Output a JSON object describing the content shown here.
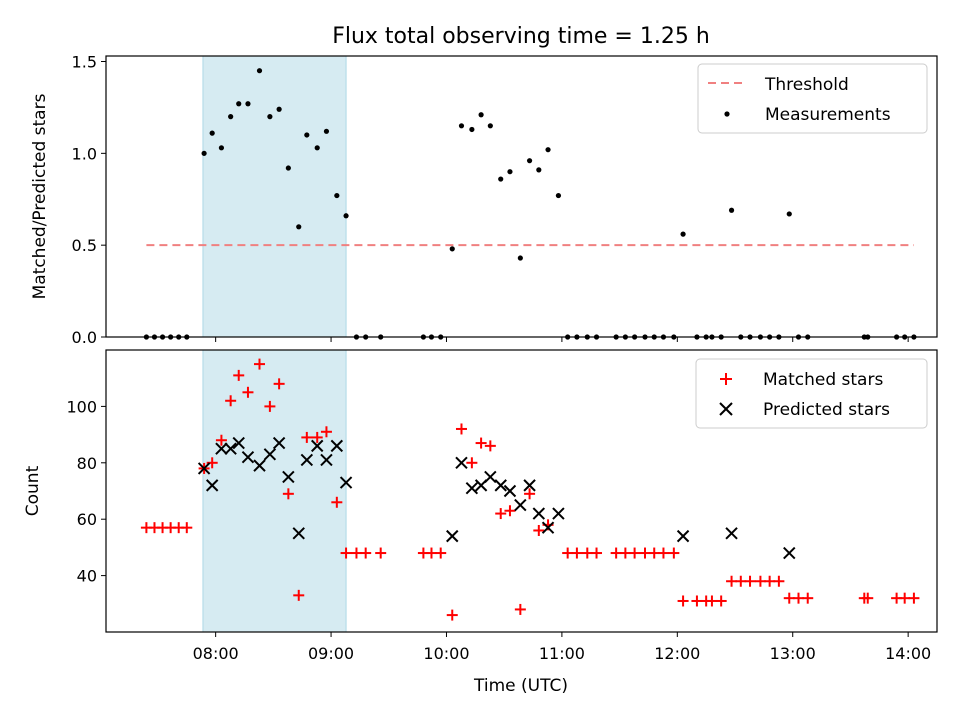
{
  "chart_data": [
    {
      "type": "scatter",
      "title": "Flux total observing time = 1.25 h",
      "ylabel": "Matched/Predicted stars",
      "xlabel": "",
      "xlim": [
        7.05,
        14.25
      ],
      "ylim": [
        0,
        1.53
      ],
      "yticks": [
        0,
        0.5,
        1.0,
        1.5
      ],
      "ytick_labels": [
        "0.0",
        "0.5",
        "1.0",
        "1.5"
      ],
      "highlight_span": [
        7.89,
        9.13
      ],
      "threshold": {
        "name": "Threshold",
        "value": 0.5,
        "x_from": 7.4,
        "x_to": 14.05,
        "color": "#f08080"
      },
      "series": [
        {
          "name": "Measurements",
          "marker": "dot",
          "color": "#000000",
          "points": [
            [
              7.4,
              0
            ],
            [
              7.47,
              0
            ],
            [
              7.54,
              0
            ],
            [
              7.61,
              0
            ],
            [
              7.68,
              0
            ],
            [
              7.75,
              0
            ],
            [
              7.9,
              1.0
            ],
            [
              7.97,
              1.11
            ],
            [
              8.05,
              1.03
            ],
            [
              8.13,
              1.2
            ],
            [
              8.2,
              1.27
            ],
            [
              8.28,
              1.27
            ],
            [
              8.38,
              1.45
            ],
            [
              8.47,
              1.2
            ],
            [
              8.55,
              1.24
            ],
            [
              8.63,
              0.92
            ],
            [
              8.72,
              0.6
            ],
            [
              8.79,
              1.1
            ],
            [
              8.88,
              1.03
            ],
            [
              8.96,
              1.12
            ],
            [
              9.05,
              0.77
            ],
            [
              9.13,
              0.66
            ],
            [
              9.22,
              0
            ],
            [
              9.3,
              0
            ],
            [
              9.43,
              0
            ],
            [
              9.8,
              0
            ],
            [
              9.87,
              0
            ],
            [
              9.95,
              0
            ],
            [
              10.05,
              0.48
            ],
            [
              10.13,
              1.15
            ],
            [
              10.22,
              1.13
            ],
            [
              10.3,
              1.21
            ],
            [
              10.38,
              1.15
            ],
            [
              10.47,
              0.86
            ],
            [
              10.55,
              0.9
            ],
            [
              10.64,
              0.43
            ],
            [
              10.72,
              0.96
            ],
            [
              10.8,
              0.91
            ],
            [
              10.88,
              1.02
            ],
            [
              10.97,
              0.77
            ],
            [
              11.05,
              0
            ],
            [
              11.13,
              0
            ],
            [
              11.22,
              0
            ],
            [
              11.3,
              0
            ],
            [
              11.47,
              0
            ],
            [
              11.55,
              0
            ],
            [
              11.63,
              0
            ],
            [
              11.72,
              0
            ],
            [
              11.8,
              0
            ],
            [
              11.88,
              0
            ],
            [
              11.97,
              0
            ],
            [
              12.05,
              0.56
            ],
            [
              12.17,
              0
            ],
            [
              12.25,
              0
            ],
            [
              12.3,
              0
            ],
            [
              12.38,
              0
            ],
            [
              12.47,
              0.69
            ],
            [
              12.55,
              0
            ],
            [
              12.63,
              0
            ],
            [
              12.72,
              0
            ],
            [
              12.8,
              0
            ],
            [
              12.88,
              0
            ],
            [
              12.97,
              0.67
            ],
            [
              13.05,
              0
            ],
            [
              13.13,
              0
            ],
            [
              13.62,
              0
            ],
            [
              13.65,
              0
            ],
            [
              13.9,
              0
            ],
            [
              13.97,
              0
            ],
            [
              14.05,
              0
            ]
          ]
        }
      ]
    },
    {
      "type": "scatter",
      "title": "",
      "ylabel": "Count",
      "xlabel": "Time (UTC)",
      "xlim": [
        7.05,
        14.25
      ],
      "ylim": [
        20,
        120
      ],
      "yticks": [
        40,
        60,
        80,
        100
      ],
      "ytick_labels": [
        "40",
        "60",
        "80",
        "100"
      ],
      "xticks": [
        8,
        9,
        10,
        11,
        12,
        13,
        14
      ],
      "xtick_labels": [
        "08:00",
        "09:00",
        "10:00",
        "11:00",
        "12:00",
        "13:00",
        "14:00"
      ],
      "highlight_span": [
        7.89,
        9.13
      ],
      "series": [
        {
          "name": "Matched stars",
          "marker": "plus",
          "color": "#ff0000",
          "points": [
            [
              7.4,
              57
            ],
            [
              7.47,
              57
            ],
            [
              7.54,
              57
            ],
            [
              7.61,
              57
            ],
            [
              7.68,
              57
            ],
            [
              7.75,
              57
            ],
            [
              7.9,
              78
            ],
            [
              7.97,
              80
            ],
            [
              8.05,
              88
            ],
            [
              8.13,
              102
            ],
            [
              8.2,
              111
            ],
            [
              8.28,
              105
            ],
            [
              8.38,
              115
            ],
            [
              8.47,
              100
            ],
            [
              8.55,
              108
            ],
            [
              8.63,
              69
            ],
            [
              8.72,
              33
            ],
            [
              8.79,
              89
            ],
            [
              8.88,
              89
            ],
            [
              8.96,
              91
            ],
            [
              9.05,
              66
            ],
            [
              9.13,
              48
            ],
            [
              9.22,
              48
            ],
            [
              9.3,
              48
            ],
            [
              9.43,
              48
            ],
            [
              9.8,
              48
            ],
            [
              9.87,
              48
            ],
            [
              9.95,
              48
            ],
            [
              10.05,
              26
            ],
            [
              10.13,
              92
            ],
            [
              10.22,
              80
            ],
            [
              10.3,
              87
            ],
            [
              10.38,
              86
            ],
            [
              10.47,
              62
            ],
            [
              10.55,
              63
            ],
            [
              10.64,
              28
            ],
            [
              10.72,
              69
            ],
            [
              10.8,
              56
            ],
            [
              10.88,
              58
            ],
            [
              11.05,
              48
            ],
            [
              11.13,
              48
            ],
            [
              11.22,
              48
            ],
            [
              11.3,
              48
            ],
            [
              11.47,
              48
            ],
            [
              11.55,
              48
            ],
            [
              11.63,
              48
            ],
            [
              11.72,
              48
            ],
            [
              11.8,
              48
            ],
            [
              11.88,
              48
            ],
            [
              11.97,
              48
            ],
            [
              12.05,
              31
            ],
            [
              12.17,
              31
            ],
            [
              12.25,
              31
            ],
            [
              12.3,
              31
            ],
            [
              12.38,
              31
            ],
            [
              12.47,
              38
            ],
            [
              12.55,
              38
            ],
            [
              12.63,
              38
            ],
            [
              12.72,
              38
            ],
            [
              12.8,
              38
            ],
            [
              12.88,
              38
            ],
            [
              12.97,
              32
            ],
            [
              13.05,
              32
            ],
            [
              13.13,
              32
            ],
            [
              13.62,
              32
            ],
            [
              13.65,
              32
            ],
            [
              13.9,
              32
            ],
            [
              13.97,
              32
            ],
            [
              14.05,
              32
            ]
          ]
        },
        {
          "name": "Predicted stars",
          "marker": "x",
          "color": "#000000",
          "points": [
            [
              7.9,
              78
            ],
            [
              7.97,
              72
            ],
            [
              8.05,
              85
            ],
            [
              8.13,
              85
            ],
            [
              8.2,
              87
            ],
            [
              8.28,
              82
            ],
            [
              8.38,
              79
            ],
            [
              8.47,
              83
            ],
            [
              8.55,
              87
            ],
            [
              8.63,
              75
            ],
            [
              8.72,
              55
            ],
            [
              8.79,
              81
            ],
            [
              8.88,
              86
            ],
            [
              8.96,
              81
            ],
            [
              9.05,
              86
            ],
            [
              9.13,
              73
            ],
            [
              10.05,
              54
            ],
            [
              10.13,
              80
            ],
            [
              10.22,
              71
            ],
            [
              10.3,
              72
            ],
            [
              10.38,
              75
            ],
            [
              10.47,
              72
            ],
            [
              10.55,
              70
            ],
            [
              10.64,
              65
            ],
            [
              10.72,
              72
            ],
            [
              10.8,
              62
            ],
            [
              10.88,
              57
            ],
            [
              10.97,
              62
            ],
            [
              12.05,
              54
            ],
            [
              12.47,
              55
            ],
            [
              12.97,
              48
            ]
          ]
        }
      ]
    }
  ]
}
